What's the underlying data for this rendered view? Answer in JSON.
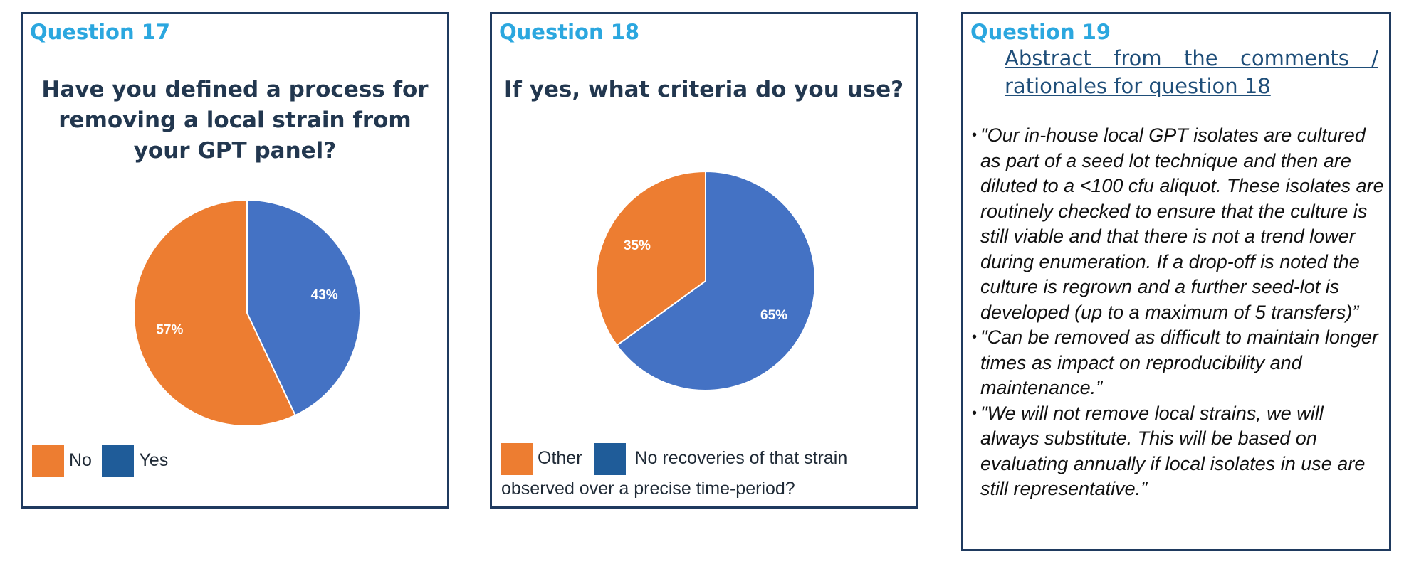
{
  "colors": {
    "no": "#ED7D31",
    "yes": "#4472C4",
    "legend_yes": "#1F5C99",
    "accent": "#2BA7DF",
    "title": "#22374F",
    "border": "#1F3A5F"
  },
  "q17": {
    "label": "Question 17",
    "title": "Have you defined a process for removing a local strain from your GPT panel?",
    "legend": [
      {
        "name": "No",
        "color": "#ED7D31"
      },
      {
        "name": "Yes",
        "color": "#1F5C99"
      }
    ]
  },
  "q18": {
    "label": "Question 18",
    "title": "If yes, what criteria do you use?",
    "legend": [
      {
        "name": "Other",
        "color": "#ED7D31"
      },
      {
        "name": "No recoveries of that strain observed over a precise time-period?",
        "color": "#1F5C99"
      }
    ]
  },
  "q19": {
    "label": "Question 19",
    "abstract": "Abstract from the comments / rationales for question 18",
    "comments": [
      "\"Our in-house local GPT isolates are cultured as part of a seed lot technique and then are diluted to a <100 cfu aliquot. These isolates are routinely checked to ensure that the culture is still viable and that there is not a trend lower during enumeration. If a drop-off is noted the culture is regrown and a further seed-lot is developed (up to a maximum of 5 transfers)”",
      "\"Can be removed as difficult to maintain longer times as impact on reproducibility and maintenance.”",
      "\"We will not remove local strains, we will always substitute. This will be based on evaluating annually if local isolates in use are still representative.”"
    ]
  },
  "chart_data": [
    {
      "type": "pie",
      "title": "Have you defined a process for removing a local strain from your GPT panel?",
      "slices": [
        {
          "label": "Yes",
          "value": 43,
          "display": "43%",
          "color": "#4472C4"
        },
        {
          "label": "No",
          "value": 57,
          "display": "57%",
          "color": "#ED7D31"
        }
      ],
      "legend_position": "bottom-left"
    },
    {
      "type": "pie",
      "title": "If yes, what criteria do you use?",
      "slices": [
        {
          "label": "No recoveries of that strain observed over a precise time-period?",
          "value": 65,
          "display": "65%",
          "color": "#4472C4"
        },
        {
          "label": "Other",
          "value": 35,
          "display": "35%",
          "color": "#ED7D31"
        }
      ],
      "legend_position": "bottom-left"
    }
  ]
}
